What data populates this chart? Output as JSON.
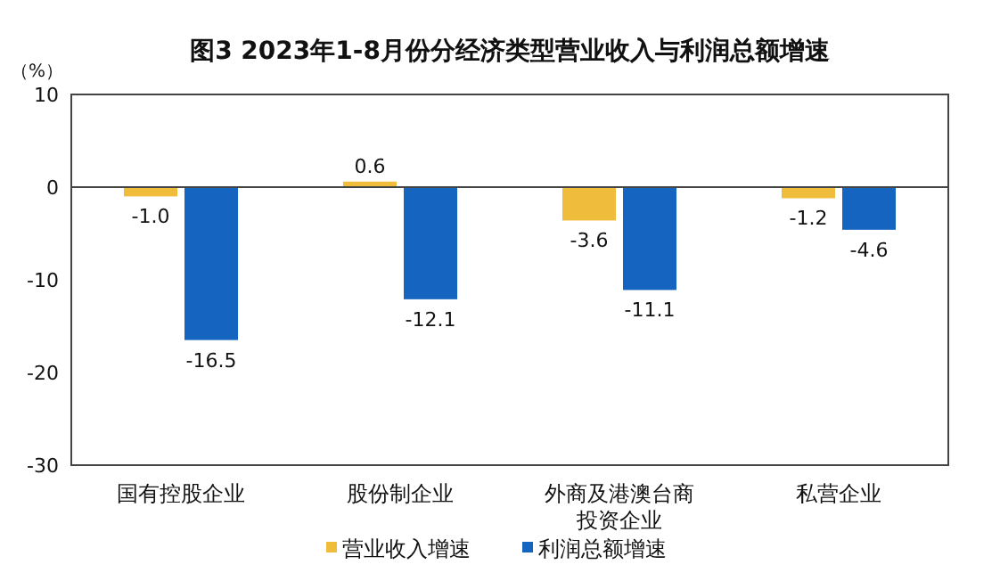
{
  "chart_data": {
    "type": "bar",
    "title": "图3  2023年1-8月份分经济类型营业收入与利润总额增速",
    "ylabel": "（%）",
    "categories": [
      "国有控股企业",
      "股份制企业",
      "外商及港澳台商投资企业",
      "私营企业"
    ],
    "series": [
      {
        "name": "营业收入增速",
        "color": "#f0bc3c",
        "values": [
          -1.0,
          0.6,
          -3.6,
          -1.2
        ],
        "value_labels": [
          "-1.0",
          "0.6",
          "-3.6",
          "-1.2"
        ]
      },
      {
        "name": "利润总额增速",
        "color": "#1565c0",
        "values": [
          -16.5,
          -12.1,
          -11.1,
          -4.6
        ],
        "value_labels": [
          "-16.5",
          "-12.1",
          "-11.1",
          "-4.6"
        ]
      }
    ],
    "ylim": [
      -30,
      10
    ],
    "yticks": [
      -30,
      -20,
      -10,
      0,
      10
    ],
    "legend": "bottom"
  }
}
